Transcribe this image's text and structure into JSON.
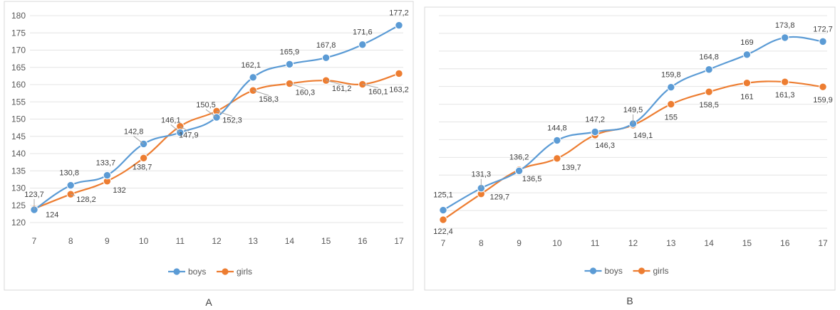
{
  "chart_data": [
    {
      "type": "line",
      "panel_label": "A",
      "categories": [
        "7",
        "8",
        "9",
        "10",
        "11",
        "12",
        "13",
        "14",
        "15",
        "16",
        "17"
      ],
      "ylim": [
        120,
        180
      ],
      "yticks": [
        "120",
        "125",
        "130",
        "135",
        "140",
        "145",
        "150",
        "155",
        "160",
        "165",
        "170",
        "175",
        "180"
      ],
      "grid": true,
      "legend": "bottom",
      "series": [
        {
          "name": "boys",
          "color": "#5b9bd5",
          "values": [
            123.7,
            130.8,
            133.7,
            142.8,
            146.1,
            150.5,
            162.1,
            165.9,
            167.8,
            171.6,
            177.2
          ],
          "labels": [
            "123,7",
            "130,8",
            "133,7",
            "142,8",
            "146,1",
            "150,5",
            "162,1",
            "165,9",
            "167,8",
            "171,6",
            "177,2"
          ]
        },
        {
          "name": "girls",
          "color": "#ed7d31",
          "values": [
            124,
            128.2,
            132,
            138.7,
            147.9,
            152.3,
            158.3,
            160.3,
            161.2,
            160.1,
            163.2
          ],
          "labels": [
            "124",
            "128,2",
            "132",
            "138,7",
            "147,9",
            "152,3",
            "158,3",
            "160,3",
            "161,2",
            "160,1",
            "163,2"
          ]
        }
      ]
    },
    {
      "type": "line",
      "panel_label": "B",
      "categories": [
        "7",
        "8",
        "9",
        "10",
        "11",
        "12",
        "13",
        "14",
        "15",
        "16",
        "17"
      ],
      "ylim": [
        120,
        180
      ],
      "grid": true,
      "legend": "bottom",
      "series": [
        {
          "name": "boys",
          "color": "#5b9bd5",
          "values": [
            125.1,
            131.3,
            136.2,
            144.8,
            147.2,
            149.5,
            159.8,
            164.8,
            169,
            173.8,
            172.7
          ],
          "labels": [
            "125,1",
            "131,3",
            "136,2",
            "144,8",
            "147,2",
            "149,5",
            "159,8",
            "164,8",
            "169",
            "173,8",
            "172,7"
          ]
        },
        {
          "name": "girls",
          "color": "#ed7d31",
          "values": [
            122.4,
            129.7,
            136.5,
            139.7,
            146.3,
            149.1,
            155,
            158.5,
            161,
            161.3,
            159.9
          ],
          "labels": [
            "122,4",
            "129,7",
            "136,5",
            "139,7",
            "146,3",
            "149,1",
            "155",
            "158,5",
            "161",
            "161,3",
            "159,9"
          ]
        }
      ]
    }
  ]
}
